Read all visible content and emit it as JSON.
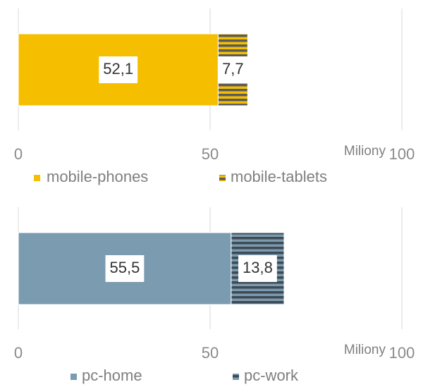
{
  "chart_data": [
    {
      "type": "bar",
      "orientation": "horizontal",
      "stacked": true,
      "categories": [
        null
      ],
      "series": [
        {
          "name": "mobile-phones",
          "color": "#f5bf00",
          "values": [
            52.1
          ],
          "value_labels": [
            "52,1"
          ]
        },
        {
          "name": "mobile-tablets",
          "color": "#f5bf00",
          "pattern": "horizontal-stripes",
          "pattern_color": "#5b5b5b",
          "values": [
            7.7
          ],
          "value_labels": [
            "7,7"
          ]
        }
      ],
      "xlabel": "Miliony",
      "xlim": [
        0,
        100
      ],
      "xticks": [
        0,
        50,
        100
      ],
      "grid": true,
      "legend": "bottom"
    },
    {
      "type": "bar",
      "orientation": "horizontal",
      "stacked": true,
      "categories": [
        null
      ],
      "series": [
        {
          "name": "pc-home",
          "color": "#7b9bb0",
          "values": [
            55.5
          ],
          "value_labels": [
            "55,5"
          ]
        },
        {
          "name": "pc-work",
          "color": "#7b9bb0",
          "pattern": "horizontal-stripes",
          "pattern_color": "#3e4a54",
          "values": [
            13.8
          ],
          "value_labels": [
            "13,8"
          ]
        }
      ],
      "xlabel": "Miliony",
      "xlim": [
        0,
        100
      ],
      "xticks": [
        0,
        50,
        100
      ],
      "grid": true,
      "legend": "bottom"
    }
  ]
}
